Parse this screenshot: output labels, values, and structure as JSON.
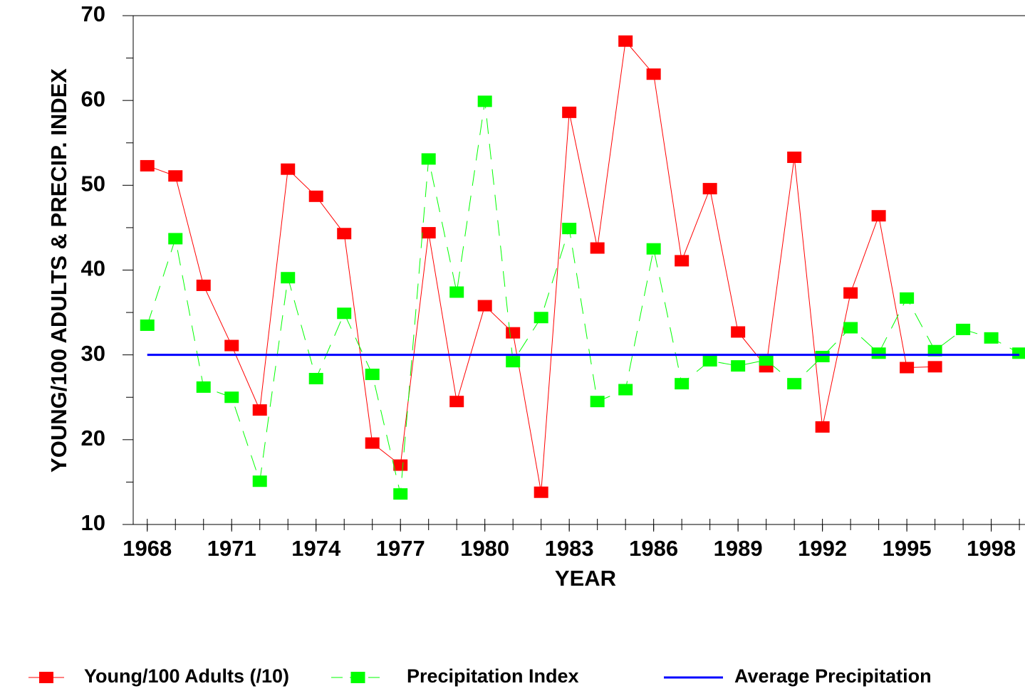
{
  "chart_data": {
    "type": "line",
    "xlabel": "YEAR",
    "ylabel": "YOUNG/100 ADULTS & PRECIP. INDEX",
    "x": [
      1968,
      1969,
      1970,
      1971,
      1972,
      1973,
      1974,
      1975,
      1976,
      1977,
      1978,
      1979,
      1980,
      1981,
      1982,
      1983,
      1984,
      1985,
      1986,
      1987,
      1988,
      1989,
      1990,
      1991,
      1992,
      1993,
      1994,
      1995,
      1996,
      1997,
      1998,
      1999
    ],
    "series": [
      {
        "name": "Young/100 Adults (/10)",
        "color": "#ff0000",
        "dash": "solid",
        "marker": true,
        "values": [
          52.3,
          51.1,
          38.2,
          31.1,
          23.5,
          51.9,
          48.7,
          44.3,
          19.6,
          17.0,
          44.4,
          24.5,
          35.8,
          32.6,
          13.8,
          58.6,
          42.6,
          67.0,
          63.1,
          41.1,
          49.6,
          32.7,
          28.6,
          53.3,
          21.5,
          37.3,
          46.4,
          28.5,
          28.6,
          null,
          null,
          null
        ]
      },
      {
        "name": "Precipitation Index",
        "color": "#00ff00",
        "dash": "dashed",
        "marker": true,
        "values": [
          33.5,
          43.7,
          26.2,
          25.0,
          15.1,
          39.1,
          27.2,
          34.9,
          27.7,
          13.6,
          53.1,
          37.4,
          59.9,
          29.2,
          34.4,
          44.9,
          24.5,
          25.9,
          42.5,
          26.6,
          29.3,
          28.7,
          29.4,
          26.6,
          29.8,
          33.2,
          30.2,
          36.7,
          30.5,
          33.0,
          32.0,
          30.2
        ]
      },
      {
        "name": "Average Precipitation",
        "color": "#0000ff",
        "dash": "solid",
        "marker": false,
        "values": [
          30,
          30,
          30,
          30,
          30,
          30,
          30,
          30,
          30,
          30,
          30,
          30,
          30,
          30,
          30,
          30,
          30,
          30,
          30,
          30,
          30,
          30,
          30,
          30,
          30,
          30,
          30,
          30,
          30,
          30,
          30,
          30
        ]
      }
    ],
    "xlim": [
      1967.5,
      1999.2
    ],
    "xticks": [
      1968,
      1971,
      1974,
      1977,
      1980,
      1983,
      1986,
      1989,
      1992,
      1995,
      1998
    ],
    "xminorticks": [
      1968,
      1969,
      1970,
      1971,
      1972,
      1973,
      1974,
      1975,
      1976,
      1977,
      1978,
      1979,
      1980,
      1981,
      1982,
      1983,
      1984,
      1985,
      1986,
      1987,
      1988,
      1989,
      1990,
      1991,
      1992,
      1993,
      1994,
      1995,
      1996,
      1997,
      1998,
      1999
    ],
    "ylim": [
      10,
      70
    ],
    "yticks": [
      10,
      20,
      30,
      40,
      50,
      60,
      70
    ],
    "yminorticks": [
      15,
      25,
      35,
      45,
      55,
      65
    ],
    "legend": "bottom",
    "grid": false
  }
}
